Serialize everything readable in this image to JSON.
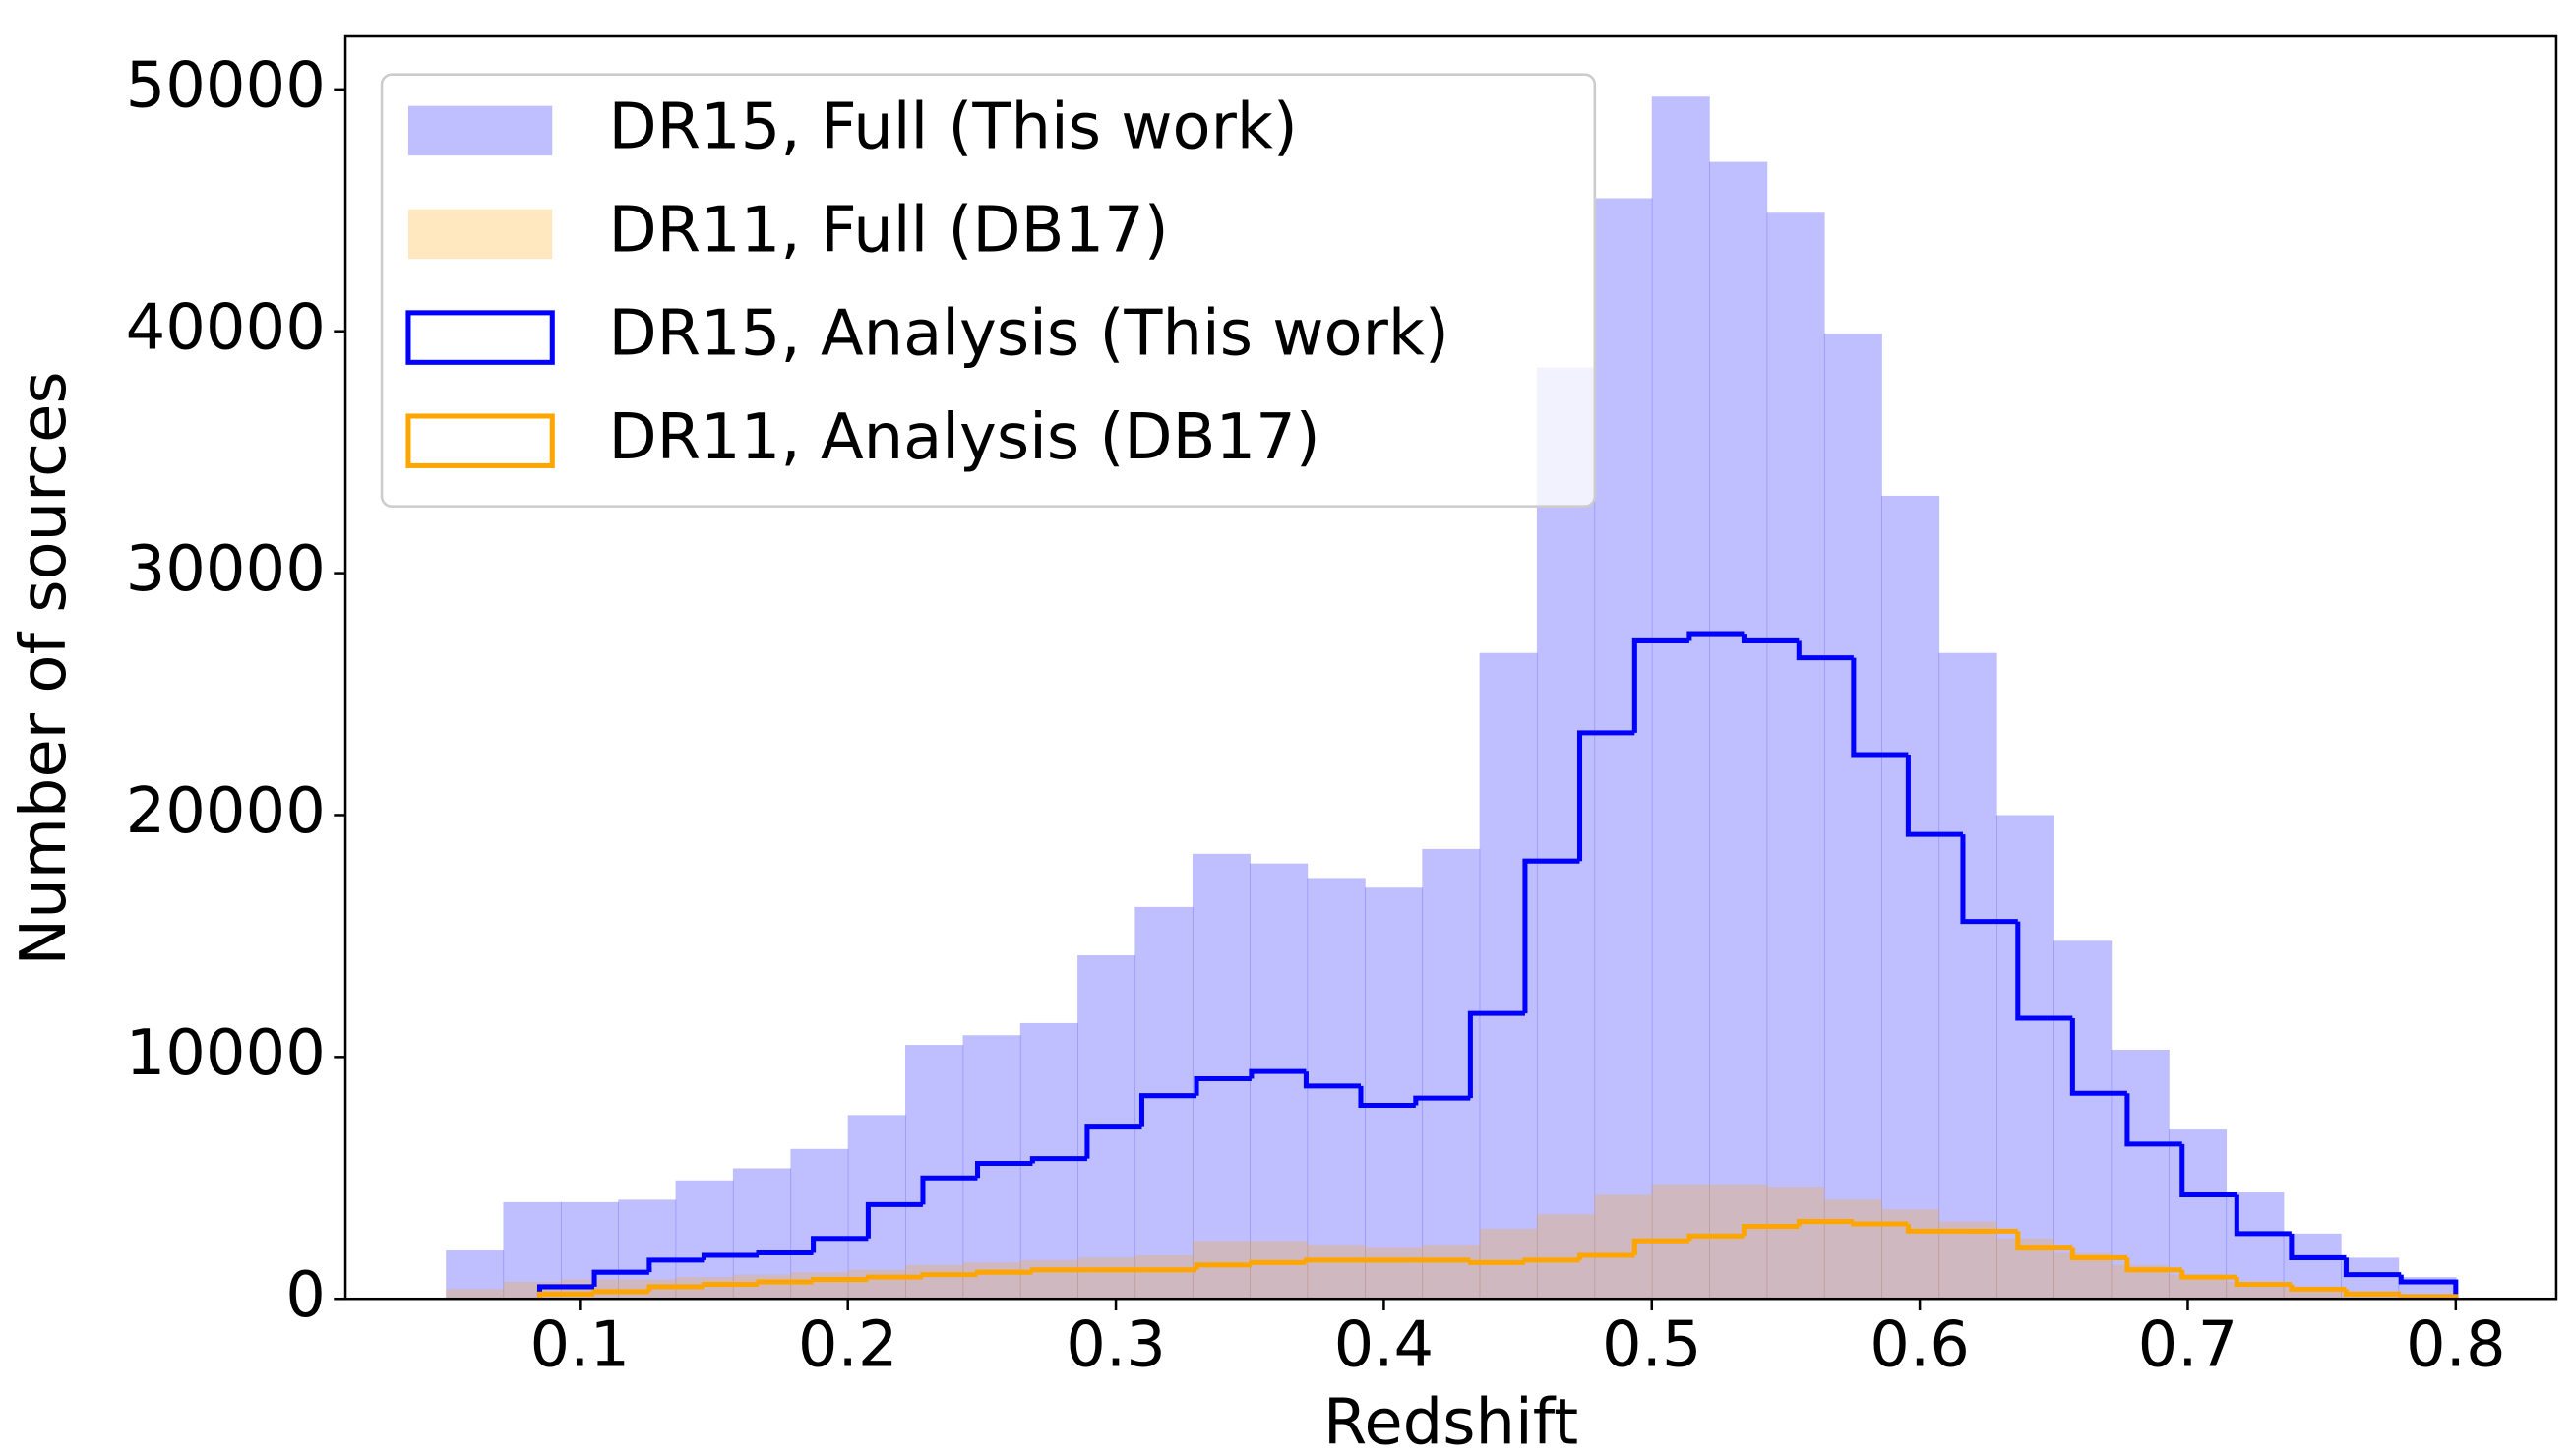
{
  "chart_data": {
    "type": "histogram",
    "xlabel": "Redshift",
    "ylabel": "Number of sources",
    "xlim": [
      0.0125,
      0.8375
    ],
    "ylim": [
      0,
      52190
    ],
    "xticks": [
      0.1,
      0.2,
      0.3,
      0.4,
      0.5,
      0.6,
      0.7,
      0.8
    ],
    "yticks": [
      0,
      10000,
      20000,
      30000,
      40000,
      50000
    ],
    "legend": "upper left",
    "series": [
      {
        "name": "DR15, Full (This work)",
        "color": "#0000ff",
        "alpha": 0.25,
        "histtype": "stepfilled",
        "bins": [
          0.05,
          0.0714,
          0.0929,
          0.1143,
          0.1357,
          0.1571,
          0.1786,
          0.2,
          0.2214,
          0.2429,
          0.2643,
          0.2857,
          0.3071,
          0.3286,
          0.35,
          0.3714,
          0.3929,
          0.4143,
          0.4357,
          0.4571,
          0.4786,
          0.5,
          0.5214,
          0.5429,
          0.5643,
          0.5857,
          0.6071,
          0.6286,
          0.65,
          0.6714,
          0.6929,
          0.7143,
          0.7357,
          0.7571,
          0.7786,
          0.8
        ],
        "values": [
          2000,
          4000,
          4000,
          4100,
          4900,
          5400,
          6200,
          7600,
          10500,
          10900,
          11400,
          14200,
          16200,
          18400,
          18000,
          17400,
          17000,
          18600,
          26700,
          38500,
          45500,
          49700,
          47000,
          44900,
          39900,
          33200,
          26700,
          20000,
          14800,
          10300,
          7000,
          4400,
          2700,
          1700,
          900
        ]
      },
      {
        "name": "DR11, Full (DB17)",
        "color": "#ffa500",
        "alpha": 0.25,
        "histtype": "stepfilled",
        "bins": [
          0.05,
          0.0714,
          0.0929,
          0.1143,
          0.1357,
          0.1571,
          0.1786,
          0.2,
          0.2214,
          0.2429,
          0.2643,
          0.2857,
          0.3071,
          0.3286,
          0.35,
          0.3714,
          0.3929,
          0.4143,
          0.4357,
          0.4571,
          0.4786,
          0.5,
          0.5214,
          0.5429,
          0.5643,
          0.5857,
          0.6071,
          0.6286,
          0.65,
          0.6714,
          0.6929,
          0.7143,
          0.7357,
          0.7571,
          0.7786,
          0.8
        ],
        "values": [
          400,
          700,
          800,
          800,
          900,
          1000,
          1100,
          1200,
          1400,
          1500,
          1600,
          1700,
          1800,
          2400,
          2400,
          2200,
          2100,
          2200,
          2900,
          3500,
          4300,
          4700,
          4700,
          4600,
          4100,
          3700,
          3200,
          2500,
          1900,
          1400,
          1000,
          700,
          500,
          300,
          150
        ]
      },
      {
        "name": "DR15, Analysis (This work)",
        "color": "#0000ff",
        "alpha": 1,
        "histtype": "step",
        "bins": [
          0.085,
          0.1054,
          0.1259,
          0.1463,
          0.1667,
          0.1871,
          0.2076,
          0.228,
          0.2484,
          0.2689,
          0.2893,
          0.3097,
          0.3301,
          0.3506,
          0.371,
          0.3914,
          0.4119,
          0.4323,
          0.4527,
          0.4731,
          0.4936,
          0.514,
          0.5344,
          0.5549,
          0.5753,
          0.5957,
          0.6161,
          0.6366,
          0.657,
          0.6774,
          0.6979,
          0.7183,
          0.7387,
          0.7591,
          0.7796,
          0.8
        ],
        "values": [
          500,
          1100,
          1600,
          1800,
          1900,
          2500,
          3900,
          5000,
          5600,
          5800,
          7100,
          8400,
          9100,
          9400,
          8800,
          8000,
          8300,
          11800,
          18100,
          23400,
          27200,
          27500,
          27200,
          26500,
          22500,
          19200,
          15600,
          11600,
          8500,
          6400,
          4300,
          2700,
          1700,
          1000,
          700
        ]
      },
      {
        "name": "DR11, Analysis (DB17)",
        "color": "#ffa500",
        "alpha": 1,
        "histtype": "step",
        "bins": [
          0.085,
          0.1054,
          0.1259,
          0.1463,
          0.1667,
          0.1871,
          0.2076,
          0.228,
          0.2484,
          0.2689,
          0.2893,
          0.3097,
          0.3301,
          0.3506,
          0.371,
          0.3914,
          0.4119,
          0.4323,
          0.4527,
          0.4731,
          0.4936,
          0.514,
          0.5344,
          0.5549,
          0.5753,
          0.5957,
          0.6161,
          0.6366,
          0.657,
          0.6774,
          0.6979,
          0.7183,
          0.7387,
          0.7591,
          0.7796,
          0.8
        ],
        "values": [
          200,
          300,
          500,
          600,
          700,
          800,
          900,
          1000,
          1100,
          1200,
          1200,
          1200,
          1400,
          1500,
          1600,
          1600,
          1600,
          1500,
          1600,
          1800,
          2400,
          2600,
          3000,
          3200,
          3100,
          2800,
          2800,
          2100,
          1700,
          1200,
          900,
          600,
          400,
          200,
          100
        ]
      }
    ]
  }
}
